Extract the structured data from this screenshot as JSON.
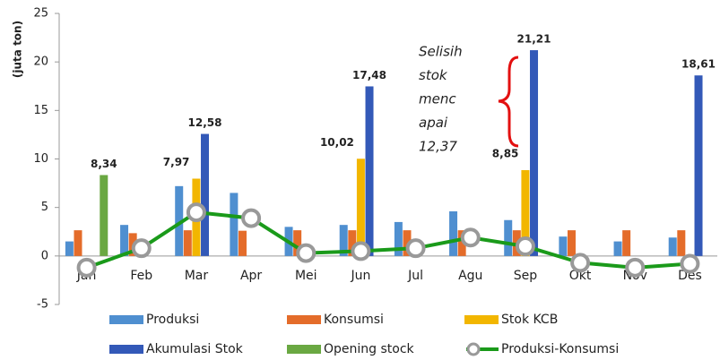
{
  "chart_data": {
    "type": "bar",
    "y_label": "(juta ton)",
    "categories": [
      "Jan",
      "Feb",
      "Mar",
      "Apr",
      "Mei",
      "Jun",
      "Jul",
      "Agu",
      "Sep",
      "Okt",
      "Nov",
      "Des"
    ],
    "ylim": [
      -5,
      25
    ],
    "yticks": [
      -5,
      0,
      5,
      10,
      15,
      20,
      25
    ],
    "grid": false,
    "legend": "bottom",
    "series": [
      {
        "name": "Produksi",
        "color": "#4f8fd0",
        "values": [
          1.5,
          3.2,
          7.2,
          6.5,
          3.0,
          3.2,
          3.5,
          4.6,
          3.7,
          2.0,
          1.5,
          1.9
        ]
      },
      {
        "name": "Konsumsi",
        "color": "#e46c2a",
        "values": [
          2.65,
          2.35,
          2.65,
          2.6,
          2.65,
          2.65,
          2.65,
          2.65,
          2.65,
          2.65,
          2.65,
          2.65
        ]
      },
      {
        "name": "Stok KCB",
        "color": "#f2b600",
        "values": [
          null,
          null,
          7.97,
          null,
          null,
          10.02,
          null,
          null,
          8.85,
          null,
          null,
          null
        ],
        "value_labels": [
          null,
          null,
          "7,97",
          null,
          null,
          "10,02",
          null,
          null,
          "8,85",
          null,
          null,
          null
        ]
      },
      {
        "name": "Akumulasi Stok",
        "color": "#3359b8",
        "values": [
          null,
          null,
          12.58,
          null,
          null,
          17.48,
          null,
          null,
          21.21,
          null,
          null,
          18.61
        ],
        "value_labels": [
          null,
          null,
          "12,58",
          null,
          null,
          "17,48",
          null,
          null,
          "21,21",
          null,
          null,
          "18,61"
        ]
      },
      {
        "name": "Opening stock",
        "color": "#6aa842",
        "values": [
          8.34,
          null,
          null,
          null,
          null,
          null,
          null,
          null,
          null,
          null,
          null,
          null
        ],
        "value_labels": [
          "8,34",
          null,
          null,
          null,
          null,
          null,
          null,
          null,
          null,
          null,
          null,
          null
        ]
      },
      {
        "name": "Produksi-Konsumsi",
        "type": "line",
        "color": "#1a9a1a",
        "values": [
          -1.2,
          0.8,
          4.5,
          3.9,
          0.3,
          0.5,
          0.8,
          1.9,
          1.0,
          -0.7,
          -1.2,
          -0.8
        ]
      }
    ],
    "annotation": [
      "Selisih",
      "stok",
      "menc",
      "apai",
      "12,37"
    ]
  }
}
